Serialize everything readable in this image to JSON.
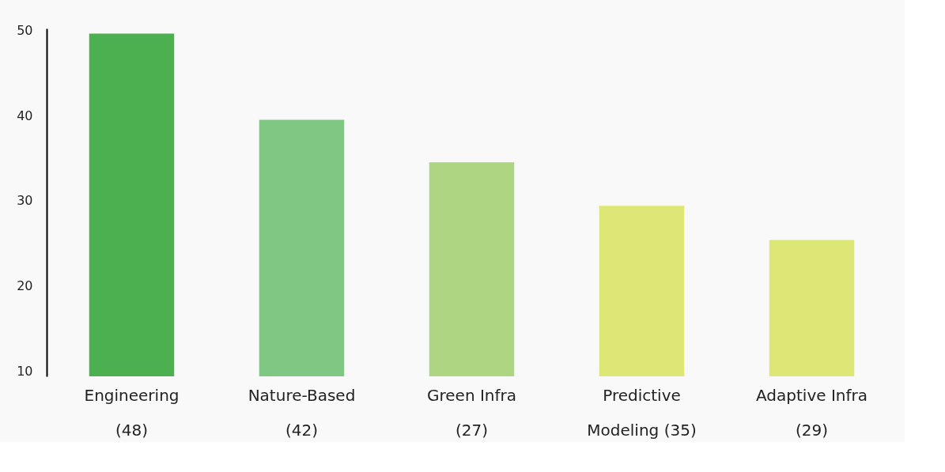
{
  "chart_data": {
    "type": "bar",
    "categories": [
      "Engineering\n(48)",
      "Nature-Based\n(42)",
      "Green Infra\n(27)",
      "Predictive\nModeling (35)",
      "Adaptive Infra\n(29)"
    ],
    "values": [
      49.6,
      39.5,
      34.5,
      29.4,
      25.4
    ],
    "colors": [
      "#4caf50",
      "#81c784",
      "#aed581",
      "#dce775",
      "#dce775"
    ],
    "ylim": [
      9.4,
      50.2
    ],
    "yticks": [
      10,
      20,
      30,
      40,
      50
    ],
    "grid": false,
    "legend": false
  }
}
